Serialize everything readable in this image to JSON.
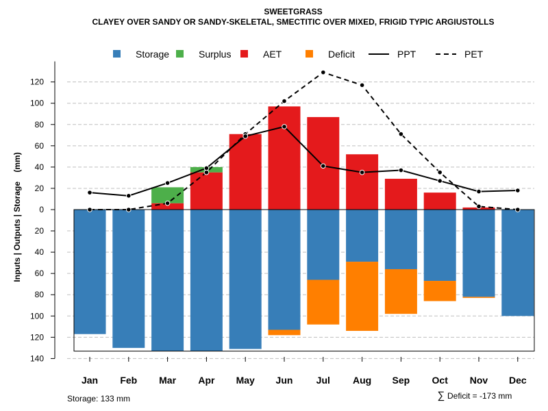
{
  "chart_data": {
    "type": "bar",
    "title": "SWEETGRASS",
    "subtitle": "CLAYEY OVER SANDY OR SANDY-SKELETAL, SMECTITIC OVER MIXED, FRIGID TYPIC ARGIUSTOLLS",
    "ylabel": "Inputs | Outputs | Storage    (mm)",
    "ylim": [
      -140,
      130
    ],
    "y_ticks": [
      120,
      100,
      80,
      60,
      40,
      20,
      0,
      -20,
      -40,
      -60,
      -80,
      -100,
      -120,
      -140
    ],
    "y_tick_labels": [
      "120",
      "100",
      "80",
      "60",
      "40",
      "20",
      "0",
      "20",
      "40",
      "60",
      "80",
      "100",
      "120",
      "140"
    ],
    "grid": true,
    "legend_position": "top",
    "categories": [
      "Jan",
      "Feb",
      "Mar",
      "Apr",
      "May",
      "Jun",
      "Jul",
      "Aug",
      "Sep",
      "Oct",
      "Nov",
      "Dec"
    ],
    "colors": {
      "Storage": "#377eb8",
      "Surplus": "#4daf4a",
      "AET": "#e41a1c",
      "Deficit": "#ff7f00",
      "PPT": "#000000",
      "PET": "#000000"
    },
    "legend": [
      {
        "name": "Storage",
        "kind": "square"
      },
      {
        "name": "Surplus",
        "kind": "square"
      },
      {
        "name": "AET",
        "kind": "square"
      },
      {
        "name": "Deficit",
        "kind": "square"
      },
      {
        "name": "PPT",
        "kind": "solid-line"
      },
      {
        "name": "PET",
        "kind": "dashed-line"
      }
    ],
    "series": [
      {
        "name": "AET",
        "values": [
          0,
          0,
          6,
          35,
          71,
          97,
          87,
          52,
          29,
          16,
          2,
          0
        ]
      },
      {
        "name": "Surplus",
        "values": [
          0,
          0,
          15,
          5,
          0,
          0,
          0,
          0,
          0,
          0,
          0,
          0
        ]
      },
      {
        "name": "Storage",
        "values": [
          117,
          130,
          133,
          133,
          131,
          113,
          66,
          49,
          56,
          67,
          82,
          100
        ]
      },
      {
        "name": "Deficit",
        "values": [
          0,
          0,
          0,
          0,
          0,
          5,
          42,
          65,
          42,
          19,
          1,
          0
        ]
      },
      {
        "name": "PPT",
        "values": [
          16,
          13,
          25,
          39,
          69,
          78,
          41,
          35,
          37,
          27,
          17,
          18
        ]
      },
      {
        "name": "PET",
        "values": [
          0,
          0,
          6,
          35,
          71,
          102,
          129,
          117,
          71,
          35,
          3,
          0
        ]
      }
    ],
    "storage_capacity": 133,
    "footer_left": "Storage: 133 mm",
    "footer_right_symbol": "∑",
    "footer_right": "Deficit = -173 mm"
  }
}
